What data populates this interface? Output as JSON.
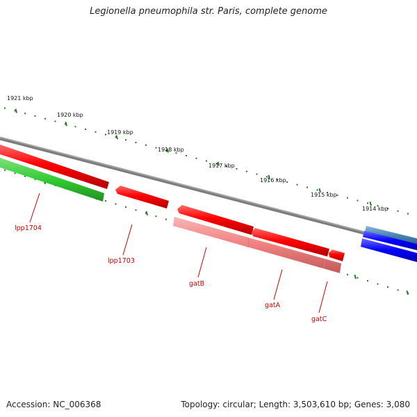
{
  "title": "Legionella pneumophila str. Paris, complete genome",
  "kbp_labels": [
    "1921 kbp",
    "1920 kbp",
    "1919 kbp",
    "1918 kbp",
    "1917 kbp",
    "1916 kbp",
    "1915 kbp",
    "1914 kbp"
  ],
  "gene_labels": [
    "lpp1704",
    "lpp1703",
    "gatB",
    "gatA",
    "gatC"
  ],
  "accession": "Accession: NC_006368",
  "summary": "Topology: circular; Length: 3,503,610 bp; Genes: 3,080",
  "colors": {
    "backbone": "#808080",
    "gene_red": "#ff0000",
    "gene_pink": "#f08080",
    "gene_green": "#33cc33",
    "gene_blue": "#0000ff",
    "gene_steelblue": "#4682b4",
    "tick": "#2a7a2a",
    "label_red": "#cc0000"
  }
}
